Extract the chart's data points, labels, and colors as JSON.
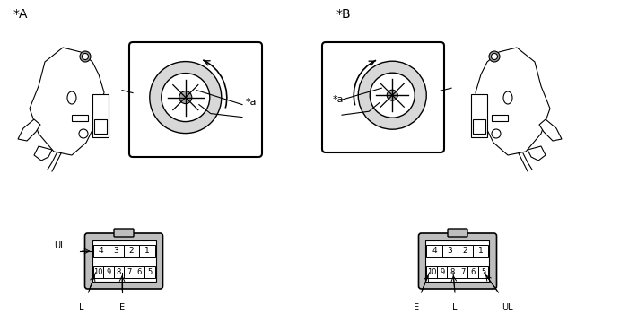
{
  "bg_color": "#ffffff",
  "line_color": "#000000",
  "gray_fill": "#d0d0d0",
  "light_gray": "#e8e8e8",
  "label_A": "*A",
  "label_B": "*B",
  "label_a": "*a",
  "pin_row1": [
    "4",
    "3",
    "2",
    "1"
  ],
  "pin_row2": [
    "10",
    "9",
    "8",
    "7",
    "6",
    "5"
  ],
  "labels_A_connector": [
    "UL",
    "L",
    "E"
  ],
  "labels_B_connector": [
    "E",
    "L",
    "UL"
  ]
}
